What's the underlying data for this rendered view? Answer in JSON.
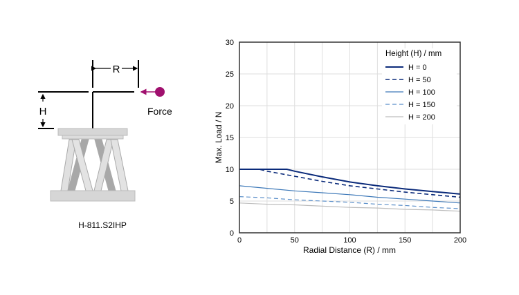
{
  "diagram": {
    "r_label": "R",
    "h_label": "H",
    "force_label": "Force",
    "product_label": "H-811.S2IHP",
    "force_color": "#a0106e"
  },
  "chart_data": {
    "type": "line",
    "title": "",
    "xlabel": "Radial Distance (R) / mm",
    "ylabel": "Max. Load / N",
    "xlim": [
      0,
      200
    ],
    "ylim": [
      0,
      30
    ],
    "xticks": [
      0,
      50,
      100,
      150,
      200
    ],
    "yticks": [
      0,
      5,
      10,
      15,
      20,
      25,
      30
    ],
    "grid": true,
    "legend_title": "Height (H) / mm",
    "legend_position": "top-right",
    "series": [
      {
        "name": "H = 0",
        "color": "#0a2a7a",
        "dash": "solid",
        "width": 2,
        "x": [
          0,
          25,
          43,
          50,
          75,
          100,
          125,
          150,
          175,
          200
        ],
        "y": [
          10,
          10,
          10,
          9.7,
          8.8,
          8.0,
          7.4,
          6.9,
          6.5,
          6.1
        ]
      },
      {
        "name": "H = 50",
        "color": "#0a2a7a",
        "dash": "dashed",
        "width": 1.6,
        "x": [
          0,
          18,
          25,
          50,
          75,
          100,
          125,
          150,
          175,
          200
        ],
        "y": [
          10,
          10,
          9.7,
          8.9,
          8.1,
          7.4,
          6.9,
          6.4,
          6.0,
          5.6
        ]
      },
      {
        "name": "H = 100",
        "color": "#3c78b8",
        "dash": "solid",
        "width": 1.2,
        "x": [
          0,
          25,
          50,
          75,
          100,
          125,
          150,
          175,
          200
        ],
        "y": [
          7.4,
          7.0,
          6.6,
          6.3,
          6.0,
          5.6,
          5.3,
          5.0,
          4.7
        ]
      },
      {
        "name": "H = 150",
        "color": "#5b8fc9",
        "dash": "dashed",
        "width": 1.2,
        "x": [
          0,
          25,
          50,
          75,
          100,
          125,
          150,
          175,
          200
        ],
        "y": [
          5.7,
          5.5,
          5.2,
          5.0,
          4.8,
          4.5,
          4.3,
          4.0,
          3.8
        ]
      },
      {
        "name": "H = 200",
        "color": "#bdbdbd",
        "dash": "solid",
        "width": 1.2,
        "x": [
          0,
          25,
          50,
          75,
          100,
          125,
          150,
          175,
          200
        ],
        "y": [
          4.7,
          4.5,
          4.4,
          4.2,
          4.0,
          3.9,
          3.7,
          3.6,
          3.4
        ]
      }
    ]
  }
}
